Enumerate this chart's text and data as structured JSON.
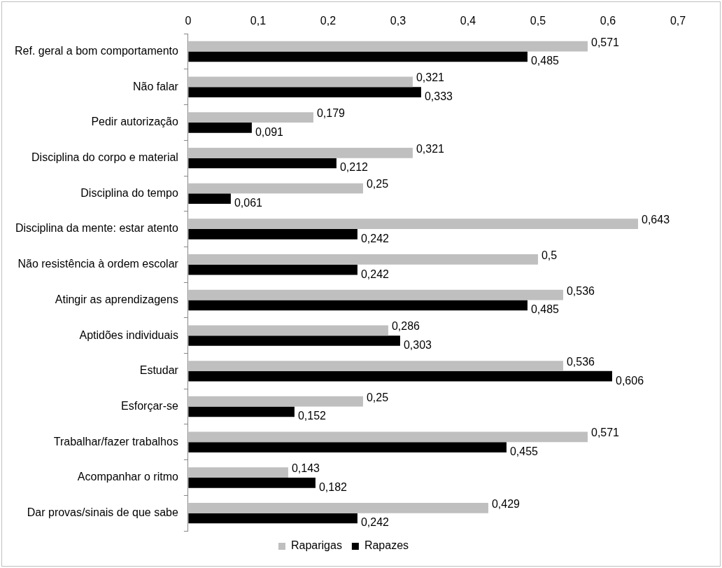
{
  "chart_data": {
    "type": "bar",
    "orientation": "horizontal",
    "categories": [
      "Ref. geral a bom comportamento",
      "Não falar",
      "Pedir autorização",
      "Disciplina do corpo e material",
      "Disciplina do tempo",
      "Disciplina da mente: estar atento",
      "Não resistência à ordem escolar",
      "Atingir as aprendizagens",
      "Aptidões individuais",
      "Estudar",
      "Esforçar-se",
      "Trabalhar/fazer trabalhos",
      "Acompanhar o ritmo",
      "Dar provas/sinais de que sabe"
    ],
    "series": [
      {
        "name": "Raparigas",
        "color": "#bfbfbf",
        "values": [
          0.571,
          0.321,
          0.179,
          0.321,
          0.25,
          0.643,
          0.5,
          0.536,
          0.286,
          0.536,
          0.25,
          0.571,
          0.143,
          0.429
        ],
        "value_labels": [
          "0,571",
          "0,321",
          "0,179",
          "0,321",
          "0,25",
          "0,643",
          "0,5",
          "0,536",
          "0,286",
          "0,536",
          "0,25",
          "0,571",
          "0,143",
          "0,429"
        ]
      },
      {
        "name": "Rapazes",
        "color": "#000000",
        "values": [
          0.485,
          0.333,
          0.091,
          0.212,
          0.061,
          0.242,
          0.242,
          0.485,
          0.303,
          0.606,
          0.152,
          0.455,
          0.182,
          0.242
        ],
        "value_labels": [
          "0,485",
          "0,333",
          "0,091",
          "0,212",
          "0,061",
          "0,242",
          "0,242",
          "0,485",
          "0,303",
          "0,606",
          "0,152",
          "0,455",
          "0,182",
          "0,242"
        ]
      }
    ],
    "xlim": [
      0,
      0.7
    ],
    "xticks": [
      0,
      {
        "value": 0.1,
        "label": "0,1"
      },
      {
        "value": 0.2,
        "label": "0,2"
      },
      {
        "value": 0.3,
        "label": "0,3"
      },
      {
        "value": 0.4,
        "label": "0,4"
      },
      {
        "value": 0.5,
        "label": "0,5"
      },
      {
        "value": 0.6,
        "label": "0,6"
      },
      {
        "value": 0.7,
        "label": "0,7"
      }
    ],
    "legend": "bottom"
  }
}
